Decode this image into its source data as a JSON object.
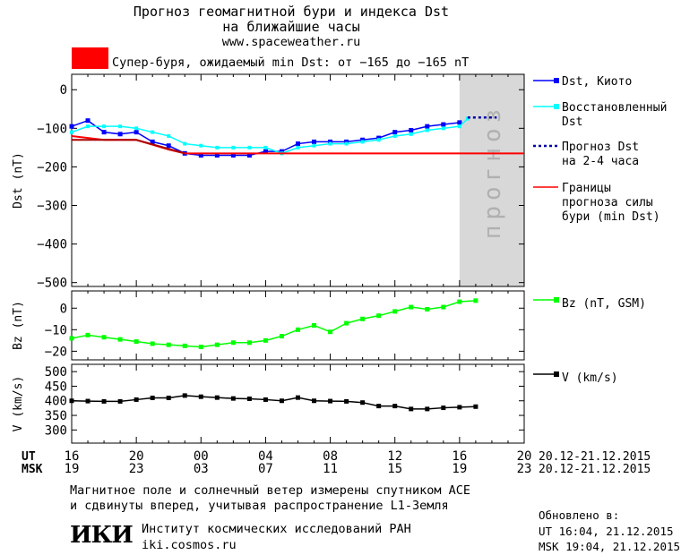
{
  "header": {
    "title_line1": "Прогноз геомагнитной бури и индекса Dst",
    "title_line2": "на ближайшие часы",
    "site": "www.spaceweather.ru"
  },
  "alert": {
    "color": "#ff0000",
    "text": "Супер-буря, ожидаемый min Dst: от −165 до −165 nT"
  },
  "legend": {
    "dst_kyoto": "Dst, Киото",
    "restored_1": "Восстановленный",
    "restored_2": "Dst",
    "forecast_1": "Прогноз Dst",
    "forecast_2": "на 2-4 часа",
    "bounds_1": "Границы",
    "bounds_2": "прогноза силы",
    "bounds_3": "бури (min Dst)",
    "bz": "Bz (nT, GSM)",
    "v": "V (km/s)"
  },
  "forecast_label": "прогноз",
  "footer": {
    "note_1": "Магнитное поле и солнечный ветер измерены спутником ACE",
    "note_2": "и сдвинуты вперед, учитывая распространение L1-Земля",
    "institute": "Институт космических исследований РАН",
    "site": "iki.cosmos.ru",
    "logo": "ИКИ",
    "updated_label": "Обновлено в:",
    "updated_ut": "UT  16:04, 21.12.2015",
    "updated_msk": "MSK 19:04, 21.12.2015"
  },
  "chart_data": [
    {
      "type": "line",
      "ylabel": "Dst (nT)",
      "xlim": [
        16,
        44
      ],
      "ylim": [
        -510,
        40
      ],
      "yticks": [
        0,
        -100,
        -200,
        -300,
        -400,
        -500
      ],
      "forecast_region": [
        40,
        44
      ],
      "series": [
        {
          "name": "Dst, Киото",
          "color": "#0000ff",
          "x": [
            16,
            17,
            18,
            19,
            20,
            21,
            22,
            23,
            24,
            25,
            26,
            27,
            28,
            29,
            30,
            31,
            32,
            33,
            34,
            35,
            36,
            37,
            38,
            39,
            40
          ],
          "y": [
            -95,
            -80,
            -110,
            -115,
            -110,
            -135,
            -145,
            -165,
            -170,
            -170,
            -170,
            -170,
            -160,
            -160,
            -140,
            -135,
            -135,
            -135,
            -130,
            -125,
            -110,
            -105,
            -95,
            -90,
            -85
          ]
        },
        {
          "name": "Восстановленный Dst",
          "color": "#00ffff",
          "x": [
            16,
            17,
            18,
            19,
            20,
            21,
            22,
            23,
            24,
            25,
            26,
            27,
            28,
            29,
            30,
            31,
            32,
            33,
            34,
            35,
            36,
            37,
            38,
            39,
            40,
            40.5
          ],
          "y": [
            -110,
            -95,
            -95,
            -95,
            -100,
            -110,
            -120,
            -140,
            -145,
            -150,
            -150,
            -150,
            -150,
            -165,
            -150,
            -145,
            -140,
            -140,
            -135,
            -130,
            -120,
            -115,
            -105,
            -100,
            -95,
            -75
          ]
        },
        {
          "name": "Прогноз Dst на 2-4 часа",
          "color": "#0000aa",
          "dash": true,
          "x": [
            40.5,
            42.3
          ],
          "y": [
            -72,
            -72
          ]
        },
        {
          "name": "Границы прогноза силы бури (min Dst)",
          "color": "#ff0000",
          "x": [
            16,
            18,
            20,
            22,
            23,
            44
          ],
          "y": [
            -120,
            -130,
            -130,
            -155,
            -165,
            -165
          ]
        },
        {
          "name": "",
          "color": "#aa0000",
          "x": [
            16,
            20,
            23
          ],
          "y": [
            -130,
            -130,
            -165
          ]
        }
      ]
    },
    {
      "type": "line",
      "ylabel": "Bz (nT)",
      "xlim": [
        16,
        44
      ],
      "ylim": [
        -24,
        8
      ],
      "yticks": [
        0,
        -10,
        -20
      ],
      "series": [
        {
          "name": "Bz (nT, GSM)",
          "color": "#00ff00",
          "x": [
            16,
            17,
            18,
            19,
            20,
            21,
            22,
            23,
            24,
            25,
            26,
            27,
            28,
            29,
            30,
            31,
            32,
            33,
            34,
            35,
            36,
            37,
            38,
            39,
            40,
            41
          ],
          "y": [
            -14,
            -12.5,
            -13.5,
            -14.5,
            -15.5,
            -16.5,
            -17,
            -17.5,
            -18,
            -17,
            -16,
            -16,
            -15,
            -13,
            -10,
            -8,
            -11,
            -7,
            -5,
            -3.5,
            -1.5,
            0.5,
            -0.5,
            0.5,
            3,
            3.5
          ]
        }
      ]
    },
    {
      "type": "line",
      "ylabel": "V (km/s)",
      "xlim": [
        16,
        44
      ],
      "ylim": [
        255,
        525
      ],
      "yticks": [
        500,
        450,
        400,
        350,
        300
      ],
      "series": [
        {
          "name": "V (km/s)",
          "color": "#000000",
          "x": [
            16,
            17,
            18,
            19,
            20,
            21,
            22,
            23,
            24,
            25,
            26,
            27,
            28,
            29,
            30,
            31,
            32,
            33,
            34,
            35,
            36,
            37,
            38,
            39,
            40,
            41
          ],
          "y": [
            400,
            399,
            398,
            398,
            404,
            410,
            410,
            418,
            414,
            411,
            408,
            407,
            404,
            400,
            411,
            400,
            399,
            398,
            394,
            382,
            382,
            372,
            372,
            376,
            378,
            380
          ]
        }
      ]
    }
  ],
  "x_axis": {
    "ut_label": "UT",
    "msk_label": "MSK",
    "ut_ticks": [
      "16",
      "20",
      "00",
      "04",
      "08",
      "12",
      "16",
      "20"
    ],
    "msk_ticks": [
      "19",
      "23",
      "03",
      "07",
      "11",
      "15",
      "19",
      "23"
    ],
    "ut_range": "20.12-21.12.2015",
    "msk_range": "20.12-21.12.2015"
  }
}
